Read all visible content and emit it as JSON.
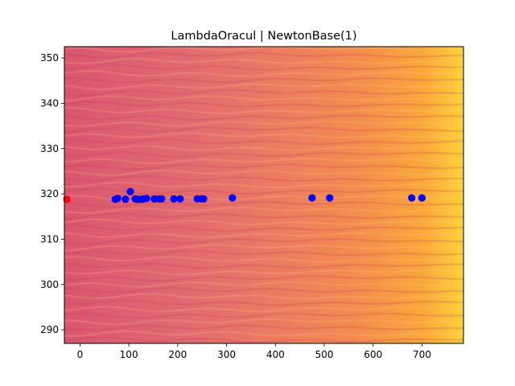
{
  "chart_data": {
    "type": "scatter",
    "title": "LambdaOracul | NewtonBase(1)",
    "xlabel": "",
    "ylabel": "",
    "xlim": [
      -32,
      785
    ],
    "ylim": [
      287,
      352.5
    ],
    "xticks": [
      0,
      100,
      200,
      300,
      400,
      500,
      600,
      700
    ],
    "yticks": [
      290,
      300,
      310,
      320,
      330,
      340,
      350
    ],
    "grid": false,
    "background": "filled contour, magenta-pink (left) to orange-yellow (right), with horizontal wavy bands",
    "colors": {
      "points": "#0000ff",
      "start_point": "#ff0000"
    },
    "series": [
      {
        "color": "#0000ff",
        "points": [
          [
            72,
            318.8
          ],
          [
            77,
            319.0
          ],
          [
            93,
            318.8
          ],
          [
            103,
            320.5
          ],
          [
            113,
            318.9
          ],
          [
            118,
            318.8
          ],
          [
            125,
            318.8
          ],
          [
            130,
            318.9
          ],
          [
            136,
            319.0
          ],
          [
            152,
            318.9
          ],
          [
            162,
            318.9
          ],
          [
            167,
            318.9
          ],
          [
            192,
            318.9
          ],
          [
            205,
            318.9
          ],
          [
            240,
            318.9
          ],
          [
            248,
            318.9
          ],
          [
            253,
            318.9
          ],
          [
            312,
            319.1
          ],
          [
            475,
            319.1
          ],
          [
            511,
            319.1
          ],
          [
            679,
            319.1
          ],
          [
            700,
            319.1
          ]
        ]
      },
      {
        "color": "#ff0000",
        "points": [
          [
            -27,
            318.8
          ]
        ]
      }
    ]
  }
}
